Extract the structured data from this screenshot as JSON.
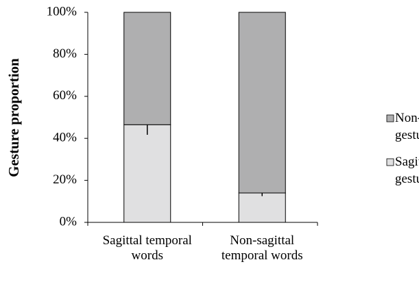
{
  "chart_data": {
    "type": "bar",
    "stacked": true,
    "y_label": "Gesture proportion",
    "categories": [
      "Sagittal temporal words",
      "Non-sagittal temporal words"
    ],
    "series": [
      {
        "name": "Sagittal gestures",
        "color": "#e0e0e1",
        "values": [
          46.5,
          14
        ],
        "errors": [
          4.8,
          1.5
        ]
      },
      {
        "name": "Non-sagittal gestures",
        "color": "#afafb0",
        "values": [
          53.5,
          86
        ]
      }
    ],
    "ylim": [
      0,
      100
    ],
    "yticks": [
      {
        "value": 0,
        "label": "0%"
      },
      {
        "value": 20,
        "label": "20%"
      },
      {
        "value": 40,
        "label": "40%"
      },
      {
        "value": 60,
        "label": "60%"
      },
      {
        "value": 80,
        "label": "80%"
      },
      {
        "value": 100,
        "label": "100%"
      }
    ],
    "legend": "right"
  }
}
